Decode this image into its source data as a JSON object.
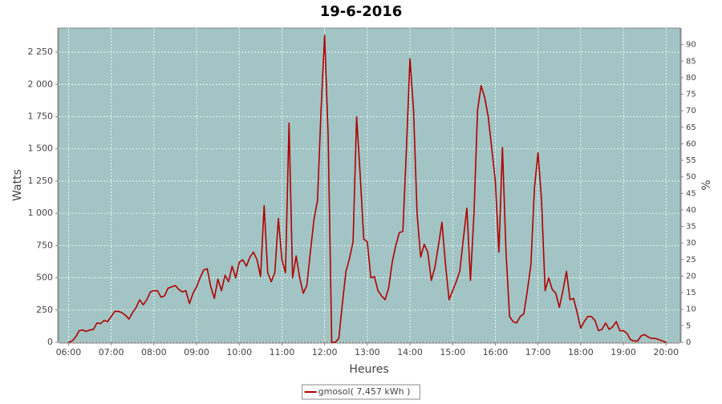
{
  "chart_data": {
    "type": "line",
    "title": "19-6-2016",
    "xlabel": "Heures",
    "ylabel": "Watts",
    "y2label": "%",
    "x": [
      360,
      365,
      370,
      375,
      380,
      385,
      390,
      395,
      400,
      405,
      410,
      415,
      420,
      425,
      430,
      435,
      440,
      445,
      450,
      455,
      460,
      465,
      470,
      475,
      480,
      485,
      490,
      495,
      500,
      505,
      510,
      515,
      520,
      525,
      530,
      535,
      540,
      545,
      550,
      555,
      560,
      565,
      570,
      575,
      580,
      585,
      590,
      595,
      600,
      605,
      610,
      615,
      620,
      625,
      630,
      635,
      640,
      645,
      650,
      655,
      660,
      665,
      670,
      675,
      680,
      685,
      690,
      695,
      700,
      705,
      710,
      715,
      720,
      725,
      730,
      735,
      740,
      745,
      750,
      755,
      760,
      765,
      770,
      775,
      780,
      785,
      790,
      795,
      800,
      805,
      810,
      815,
      820,
      825,
      830,
      835,
      840,
      845,
      850,
      855,
      860,
      865,
      870,
      875,
      880,
      885,
      890,
      895,
      900,
      905,
      910,
      915,
      920,
      925,
      930,
      935,
      940,
      945,
      950,
      955,
      960,
      965,
      970,
      975,
      980,
      985,
      990,
      995,
      1000,
      1005,
      1010,
      1015,
      1020,
      1025,
      1030,
      1035,
      1040,
      1045,
      1050,
      1055,
      1060,
      1065,
      1070,
      1075,
      1080,
      1085,
      1090,
      1095,
      1100,
      1105,
      1110,
      1115,
      1120,
      1125,
      1130,
      1135,
      1140,
      1145,
      1150,
      1155,
      1160,
      1165,
      1170,
      1175,
      1180,
      1185,
      1190,
      1195,
      1200
    ],
    "series": [
      {
        "name": "gmosol( 7,457 kWh )",
        "color": "#b00000",
        "values": [
          0,
          10,
          40,
          90,
          95,
          85,
          95,
          100,
          150,
          145,
          170,
          160,
          200,
          240,
          240,
          230,
          210,
          180,
          230,
          270,
          330,
          290,
          330,
          390,
          400,
          400,
          350,
          360,
          420,
          430,
          440,
          410,
          390,
          400,
          300,
          380,
          430,
          500,
          560,
          570,
          430,
          340,
          490,
          400,
          520,
          470,
          590,
          500,
          620,
          640,
          590,
          660,
          700,
          640,
          510,
          1060,
          540,
          470,
          540,
          960,
          640,
          540,
          1700,
          500,
          670,
          500,
          380,
          440,
          700,
          950,
          1100,
          1800,
          2380,
          1600,
          0,
          0,
          30,
          300,
          550,
          650,
          780,
          1750,
          1300,
          800,
          780,
          500,
          510,
          400,
          360,
          330,
          420,
          620,
          750,
          850,
          860,
          1500,
          2200,
          1800,
          1000,
          660,
          760,
          700,
          480,
          580,
          750,
          930,
          600,
          330,
          400,
          470,
          550,
          800,
          1040,
          480,
          1000,
          1800,
          1990,
          1900,
          1750,
          1500,
          1250,
          700,
          1510,
          700,
          200,
          160,
          150,
          200,
          220,
          400,
          600,
          1200,
          1470,
          1100,
          400,
          500,
          410,
          380,
          270,
          400,
          550,
          330,
          340,
          230,
          110,
          160,
          200,
          200,
          170,
          90,
          100,
          150,
          100,
          120,
          160,
          90,
          90,
          70,
          20,
          10,
          10,
          50,
          60,
          40,
          30,
          30,
          20,
          10,
          0
        ]
      }
    ],
    "xlim": [
      346,
      1220
    ],
    "xticks": [
      {
        "value": 360,
        "label": "06:00"
      },
      {
        "value": 420,
        "label": "07:00"
      },
      {
        "value": 480,
        "label": "08:00"
      },
      {
        "value": 540,
        "label": "09:00"
      },
      {
        "value": 600,
        "label": "10:00"
      },
      {
        "value": 660,
        "label": "11:00"
      },
      {
        "value": 720,
        "label": "12:00"
      },
      {
        "value": 780,
        "label": "13:00"
      },
      {
        "value": 840,
        "label": "14:00"
      },
      {
        "value": 900,
        "label": "15:00"
      },
      {
        "value": 960,
        "label": "16:00"
      },
      {
        "value": 1020,
        "label": "17:00"
      },
      {
        "value": 1080,
        "label": "18:00"
      },
      {
        "value": 1140,
        "label": "19:00"
      },
      {
        "value": 1200,
        "label": "20:00"
      }
    ],
    "ylim": [
      0,
      2437
    ],
    "yticks": [
      0,
      250,
      500,
      750,
      {
        "value": 1000,
        "label": "1 000"
      },
      {
        "value": 1250,
        "label": "1 250"
      },
      {
        "value": 1500,
        "label": "1 500"
      },
      {
        "value": 1750,
        "label": "1 750"
      },
      {
        "value": 2000,
        "label": "2 000"
      },
      {
        "value": 2250,
        "label": "2 250"
      }
    ],
    "y2lim": [
      0,
      95
    ],
    "y2ticks": [
      0,
      5,
      10,
      15,
      20,
      25,
      30,
      35,
      40,
      45,
      50,
      55,
      60,
      65,
      70,
      75,
      80,
      85,
      90
    ],
    "grid": true,
    "background": "#a2c4c4"
  }
}
